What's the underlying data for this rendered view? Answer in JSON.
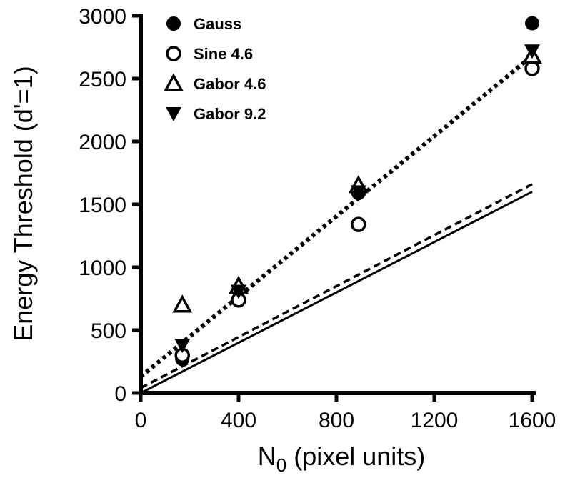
{
  "chart_data": {
    "type": "scatter",
    "title": "",
    "xlabel": "N",
    "xlabel_subscript": "0",
    "xlabel_suffix": " (pixel units)",
    "ylabel": "Energy Threshold (d'=1)",
    "xlim": [
      0,
      1600
    ],
    "ylim": [
      0,
      3000
    ],
    "xticks": [
      0,
      400,
      800,
      1200,
      1600
    ],
    "yticks": [
      0,
      500,
      1000,
      1500,
      2000,
      2500,
      3000
    ],
    "legend_position": "top-left",
    "series": [
      {
        "name": "Gauss",
        "marker": "filled-circle",
        "x": [
          170,
          400,
          890,
          1600
        ],
        "y": [
          270,
          820,
          1590,
          2940
        ]
      },
      {
        "name": "Sine 4.6",
        "marker": "open-circle",
        "x": [
          170,
          400,
          890,
          1600
        ],
        "y": [
          300,
          740,
          1340,
          2580
        ]
      },
      {
        "name": "Gabor 4.6",
        "marker": "open-triangle-up",
        "x": [
          170,
          400,
          890,
          1600
        ],
        "y": [
          700,
          850,
          1650,
          2680
        ]
      },
      {
        "name": "Gabor 9.2",
        "marker": "filled-triangle-down",
        "x": [
          170,
          400,
          890,
          1600
        ],
        "y": [
          380,
          810,
          1600,
          2720
        ]
      }
    ],
    "lines": [
      {
        "style": "dotted-thick",
        "x": [
          0,
          1600
        ],
        "y": [
          130,
          2680
        ]
      },
      {
        "style": "dashed",
        "x": [
          0,
          1600
        ],
        "y": [
          40,
          1660
        ]
      },
      {
        "style": "solid",
        "x": [
          0,
          1600
        ],
        "y": [
          0,
          1600
        ]
      }
    ]
  }
}
